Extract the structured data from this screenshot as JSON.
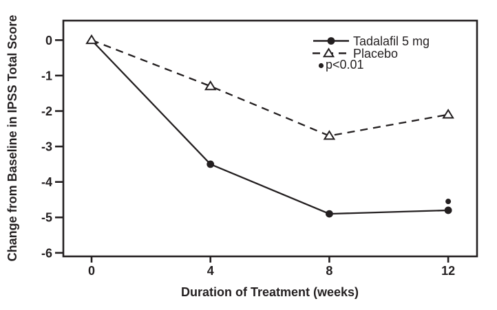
{
  "figure": {
    "background_color": "#ffffff",
    "ink_color": "#231f20"
  },
  "chart_data": {
    "type": "line",
    "title": "",
    "xlabel": "Duration of Treatment (weeks)",
    "ylabel": "Change from Baseline in IPSS Total Score",
    "x": [
      0,
      4,
      8,
      12
    ],
    "x_tick_labels": [
      "0",
      "4",
      "8",
      "12"
    ],
    "y_tick_values": [
      0,
      -1,
      -2,
      -3,
      -4,
      -5,
      -6
    ],
    "y_tick_labels": [
      "0",
      "-1",
      "-2",
      "-3",
      "-4",
      "-5",
      "-6"
    ],
    "xlim": [
      -0.95,
      12.97
    ],
    "ylim": [
      -6.1,
      0.55
    ],
    "grid": false,
    "legend_position": "top-right",
    "series": [
      {
        "name": "Tadalafil 5 mg",
        "line_style": "solid",
        "marker": "filled-circle",
        "values": [
          0,
          -3.5,
          -4.9,
          -4.8
        ]
      },
      {
        "name": "Placebo",
        "line_style": "dashed",
        "marker": "open-triangle",
        "values": [
          0,
          -1.3,
          -2.7,
          -2.1
        ]
      }
    ],
    "annotations": [
      {
        "type": "significance-dot",
        "x": 12,
        "y": -4.55,
        "label": "p<0.01"
      }
    ],
    "legend_note": "p<0.01"
  }
}
